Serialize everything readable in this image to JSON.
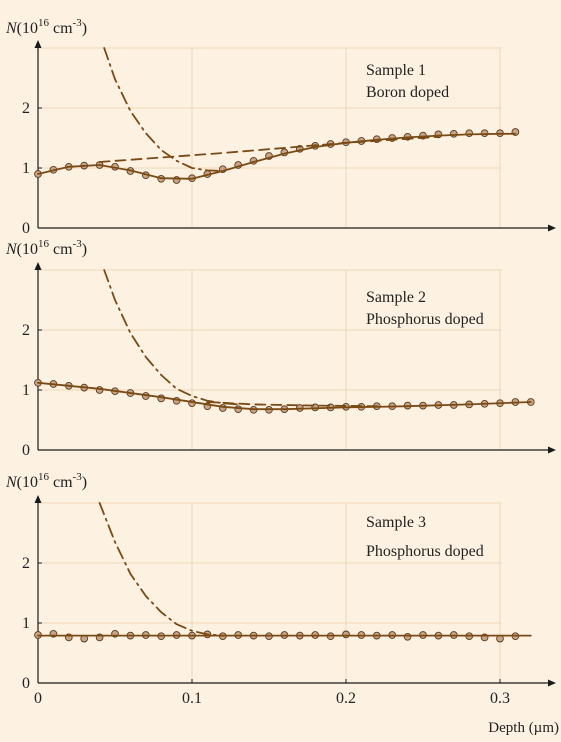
{
  "colors": {
    "background": "#fdf1e2",
    "grid": "#efd9b5",
    "curve": "#7a4a15",
    "marker_fill": "#c9a585",
    "marker_stroke": "#5a3a1a",
    "axis": "#1a1a1a"
  },
  "chart_data": [
    {
      "type": "line",
      "title": "",
      "ylabel": {
        "prefix": "N(10",
        "sup1": "16",
        "unit": " cm",
        "sup2": "-3",
        "suffix": ")"
      },
      "xlim": [
        0,
        0.32
      ],
      "ylim": [
        0,
        3
      ],
      "y_ticks": [
        0,
        1,
        2
      ],
      "annotation": [
        "Sample 1",
        "Boron doped"
      ],
      "grid": true,
      "series": [
        {
          "name": "",
          "style": "markers",
          "x": [
            0,
            0.01,
            0.02,
            0.03,
            0.04,
            0.05,
            0.06,
            0.07,
            0.08,
            0.09,
            0.1,
            0.11,
            0.12,
            0.13,
            0.14,
            0.15,
            0.16,
            0.17,
            0.18,
            0.19,
            0.2,
            0.21,
            0.22,
            0.23,
            0.24,
            0.25,
            0.26,
            0.27,
            0.28,
            0.29,
            0.3,
            0.31
          ],
          "y": [
            0.9,
            0.97,
            1.02,
            1.04,
            1.05,
            1.02,
            0.95,
            0.88,
            0.82,
            0.8,
            0.83,
            0.9,
            0.98,
            1.05,
            1.12,
            1.2,
            1.26,
            1.32,
            1.37,
            1.4,
            1.43,
            1.45,
            1.48,
            1.5,
            1.52,
            1.54,
            1.56,
            1.57,
            1.58,
            1.58,
            1.58,
            1.6
          ]
        },
        {
          "name": "",
          "style": "solid",
          "x": [
            0,
            0.02,
            0.04,
            0.06,
            0.08,
            0.1,
            0.12,
            0.14,
            0.16,
            0.18,
            0.2,
            0.22,
            0.24,
            0.26,
            0.28,
            0.3,
            0.31
          ],
          "y": [
            0.9,
            1.02,
            1.05,
            0.96,
            0.83,
            0.82,
            0.95,
            1.1,
            1.24,
            1.35,
            1.42,
            1.47,
            1.51,
            1.54,
            1.56,
            1.57,
            1.57
          ]
        },
        {
          "name": "",
          "style": "dashed",
          "x": [
            0.04,
            0.12,
            0.2,
            0.26
          ],
          "y": [
            1.1,
            1.25,
            1.42,
            1.52
          ]
        },
        {
          "name": "",
          "style": "dashdot",
          "x": [
            0.043,
            0.05,
            0.06,
            0.07,
            0.08,
            0.09,
            0.1,
            0.11,
            0.12
          ],
          "y": [
            3.0,
            2.48,
            1.95,
            1.58,
            1.3,
            1.12,
            1.0,
            0.96,
            0.95
          ]
        }
      ]
    },
    {
      "type": "line",
      "title": "",
      "ylabel": {
        "prefix": "N(10",
        "sup1": "16",
        "unit": " cm",
        "sup2": "-3",
        "suffix": ")"
      },
      "xlim": [
        0,
        0.32
      ],
      "ylim": [
        0,
        3
      ],
      "y_ticks": [
        0,
        1,
        2
      ],
      "annotation": [
        "Sample 2",
        "Phosphorus doped"
      ],
      "grid": true,
      "series": [
        {
          "name": "",
          "style": "markers",
          "x": [
            0,
            0.01,
            0.02,
            0.03,
            0.04,
            0.05,
            0.06,
            0.07,
            0.08,
            0.09,
            0.1,
            0.11,
            0.12,
            0.13,
            0.14,
            0.15,
            0.16,
            0.17,
            0.18,
            0.19,
            0.2,
            0.21,
            0.22,
            0.23,
            0.24,
            0.25,
            0.26,
            0.27,
            0.28,
            0.29,
            0.3,
            0.31,
            0.32
          ],
          "y": [
            1.12,
            1.1,
            1.07,
            1.04,
            1.0,
            0.98,
            0.95,
            0.9,
            0.86,
            0.82,
            0.78,
            0.73,
            0.7,
            0.68,
            0.67,
            0.67,
            0.68,
            0.7,
            0.71,
            0.71,
            0.72,
            0.72,
            0.73,
            0.73,
            0.74,
            0.74,
            0.75,
            0.75,
            0.76,
            0.77,
            0.78,
            0.8,
            0.8
          ]
        },
        {
          "name": "",
          "style": "solid",
          "x": [
            0,
            0.04,
            0.08,
            0.12,
            0.14,
            0.16,
            0.2,
            0.24,
            0.28,
            0.32
          ],
          "y": [
            1.12,
            1.02,
            0.88,
            0.72,
            0.68,
            0.68,
            0.71,
            0.73,
            0.76,
            0.8
          ]
        },
        {
          "name": "",
          "style": "dashed",
          "x": [
            0.11,
            0.14,
            0.18,
            0.22
          ],
          "y": [
            0.8,
            0.76,
            0.74,
            0.73
          ]
        },
        {
          "name": "",
          "style": "dashdot",
          "x": [
            0.043,
            0.05,
            0.06,
            0.07,
            0.08,
            0.09,
            0.1,
            0.11,
            0.12,
            0.13
          ],
          "y": [
            3.0,
            2.5,
            1.95,
            1.55,
            1.25,
            1.02,
            0.9,
            0.82,
            0.78,
            0.76
          ]
        }
      ]
    },
    {
      "type": "line",
      "title": "",
      "ylabel": {
        "prefix": "N(10",
        "sup1": "16",
        "unit": " cm",
        "sup2": "-3",
        "suffix": ")"
      },
      "xlim": [
        0,
        0.32
      ],
      "ylim": [
        0,
        3
      ],
      "y_ticks": [
        0,
        1,
        2
      ],
      "x_ticks": [
        0,
        0.1,
        0.2,
        0.3
      ],
      "x_tick_labels": [
        "0",
        "0.1",
        "0.2",
        "0.3"
      ],
      "xlabel": "Depth (µm)",
      "annotation": [
        "Sample 3",
        "Phosphorus doped"
      ],
      "grid": true,
      "series": [
        {
          "name": "",
          "style": "markers",
          "x": [
            0,
            0.01,
            0.02,
            0.03,
            0.04,
            0.05,
            0.06,
            0.07,
            0.08,
            0.09,
            0.1,
            0.11,
            0.12,
            0.13,
            0.14,
            0.15,
            0.16,
            0.17,
            0.18,
            0.19,
            0.2,
            0.21,
            0.22,
            0.23,
            0.24,
            0.25,
            0.26,
            0.27,
            0.28,
            0.29,
            0.3,
            0.31
          ],
          "y": [
            0.8,
            0.82,
            0.76,
            0.74,
            0.76,
            0.82,
            0.79,
            0.8,
            0.78,
            0.8,
            0.79,
            0.81,
            0.78,
            0.8,
            0.79,
            0.78,
            0.8,
            0.79,
            0.8,
            0.78,
            0.81,
            0.8,
            0.79,
            0.8,
            0.77,
            0.8,
            0.79,
            0.8,
            0.78,
            0.76,
            0.74,
            0.78
          ]
        },
        {
          "name": "",
          "style": "solid",
          "x": [
            0,
            0.32
          ],
          "y": [
            0.79,
            0.79
          ]
        },
        {
          "name": "",
          "style": "dashdot",
          "x": [
            0.04,
            0.05,
            0.06,
            0.07,
            0.08,
            0.09,
            0.1,
            0.11,
            0.12
          ],
          "y": [
            3.0,
            2.35,
            1.82,
            1.45,
            1.18,
            0.98,
            0.87,
            0.81,
            0.79
          ]
        }
      ]
    }
  ]
}
